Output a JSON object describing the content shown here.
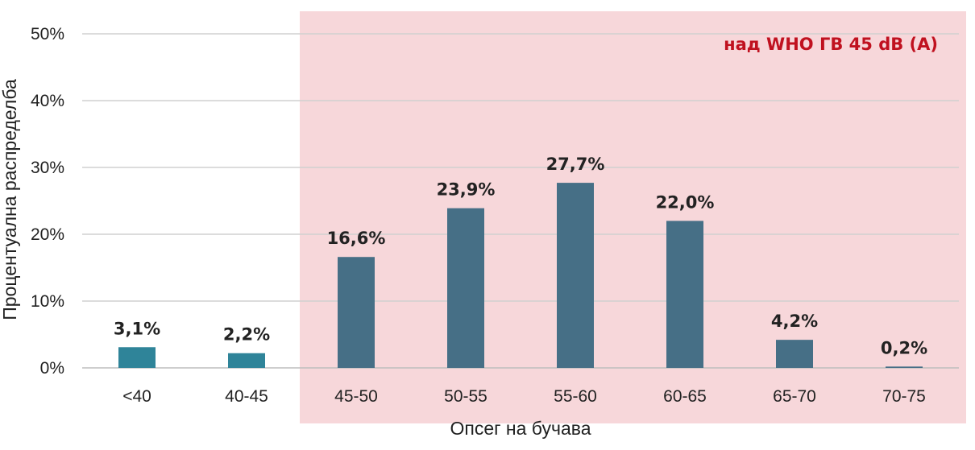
{
  "chart_data": {
    "type": "bar",
    "categories": [
      "<40",
      "40-45",
      "45-50",
      "50-55",
      "55-60",
      "60-65",
      "65-70",
      "70-75"
    ],
    "values": [
      3.1,
      2.2,
      16.6,
      23.9,
      27.7,
      22.0,
      4.2,
      0.2
    ],
    "data_labels": [
      "3,1%",
      "2,2%",
      "16,6%",
      "23,9%",
      "27,7%",
      "22,0%",
      "4,2%",
      "0,2%"
    ],
    "xlabel": "Опсег на бучава",
    "ylabel": "Процентуална распределба",
    "ylim": [
      0,
      50
    ],
    "yticks": [
      0,
      10,
      20,
      30,
      40,
      50
    ],
    "ytick_labels": [
      "0%",
      "10%",
      "20%",
      "30%",
      "40%",
      "50%"
    ],
    "grid": true,
    "highlight": {
      "from_category": "45-50",
      "to_category": "70-75",
      "label": "над WHO ГВ 45 dB (A)",
      "fill_color": "#f7d7da",
      "label_color": "#c0111f"
    },
    "bar_colors": {
      "below_threshold": "#2f8499",
      "above_threshold": "#466f86"
    }
  }
}
